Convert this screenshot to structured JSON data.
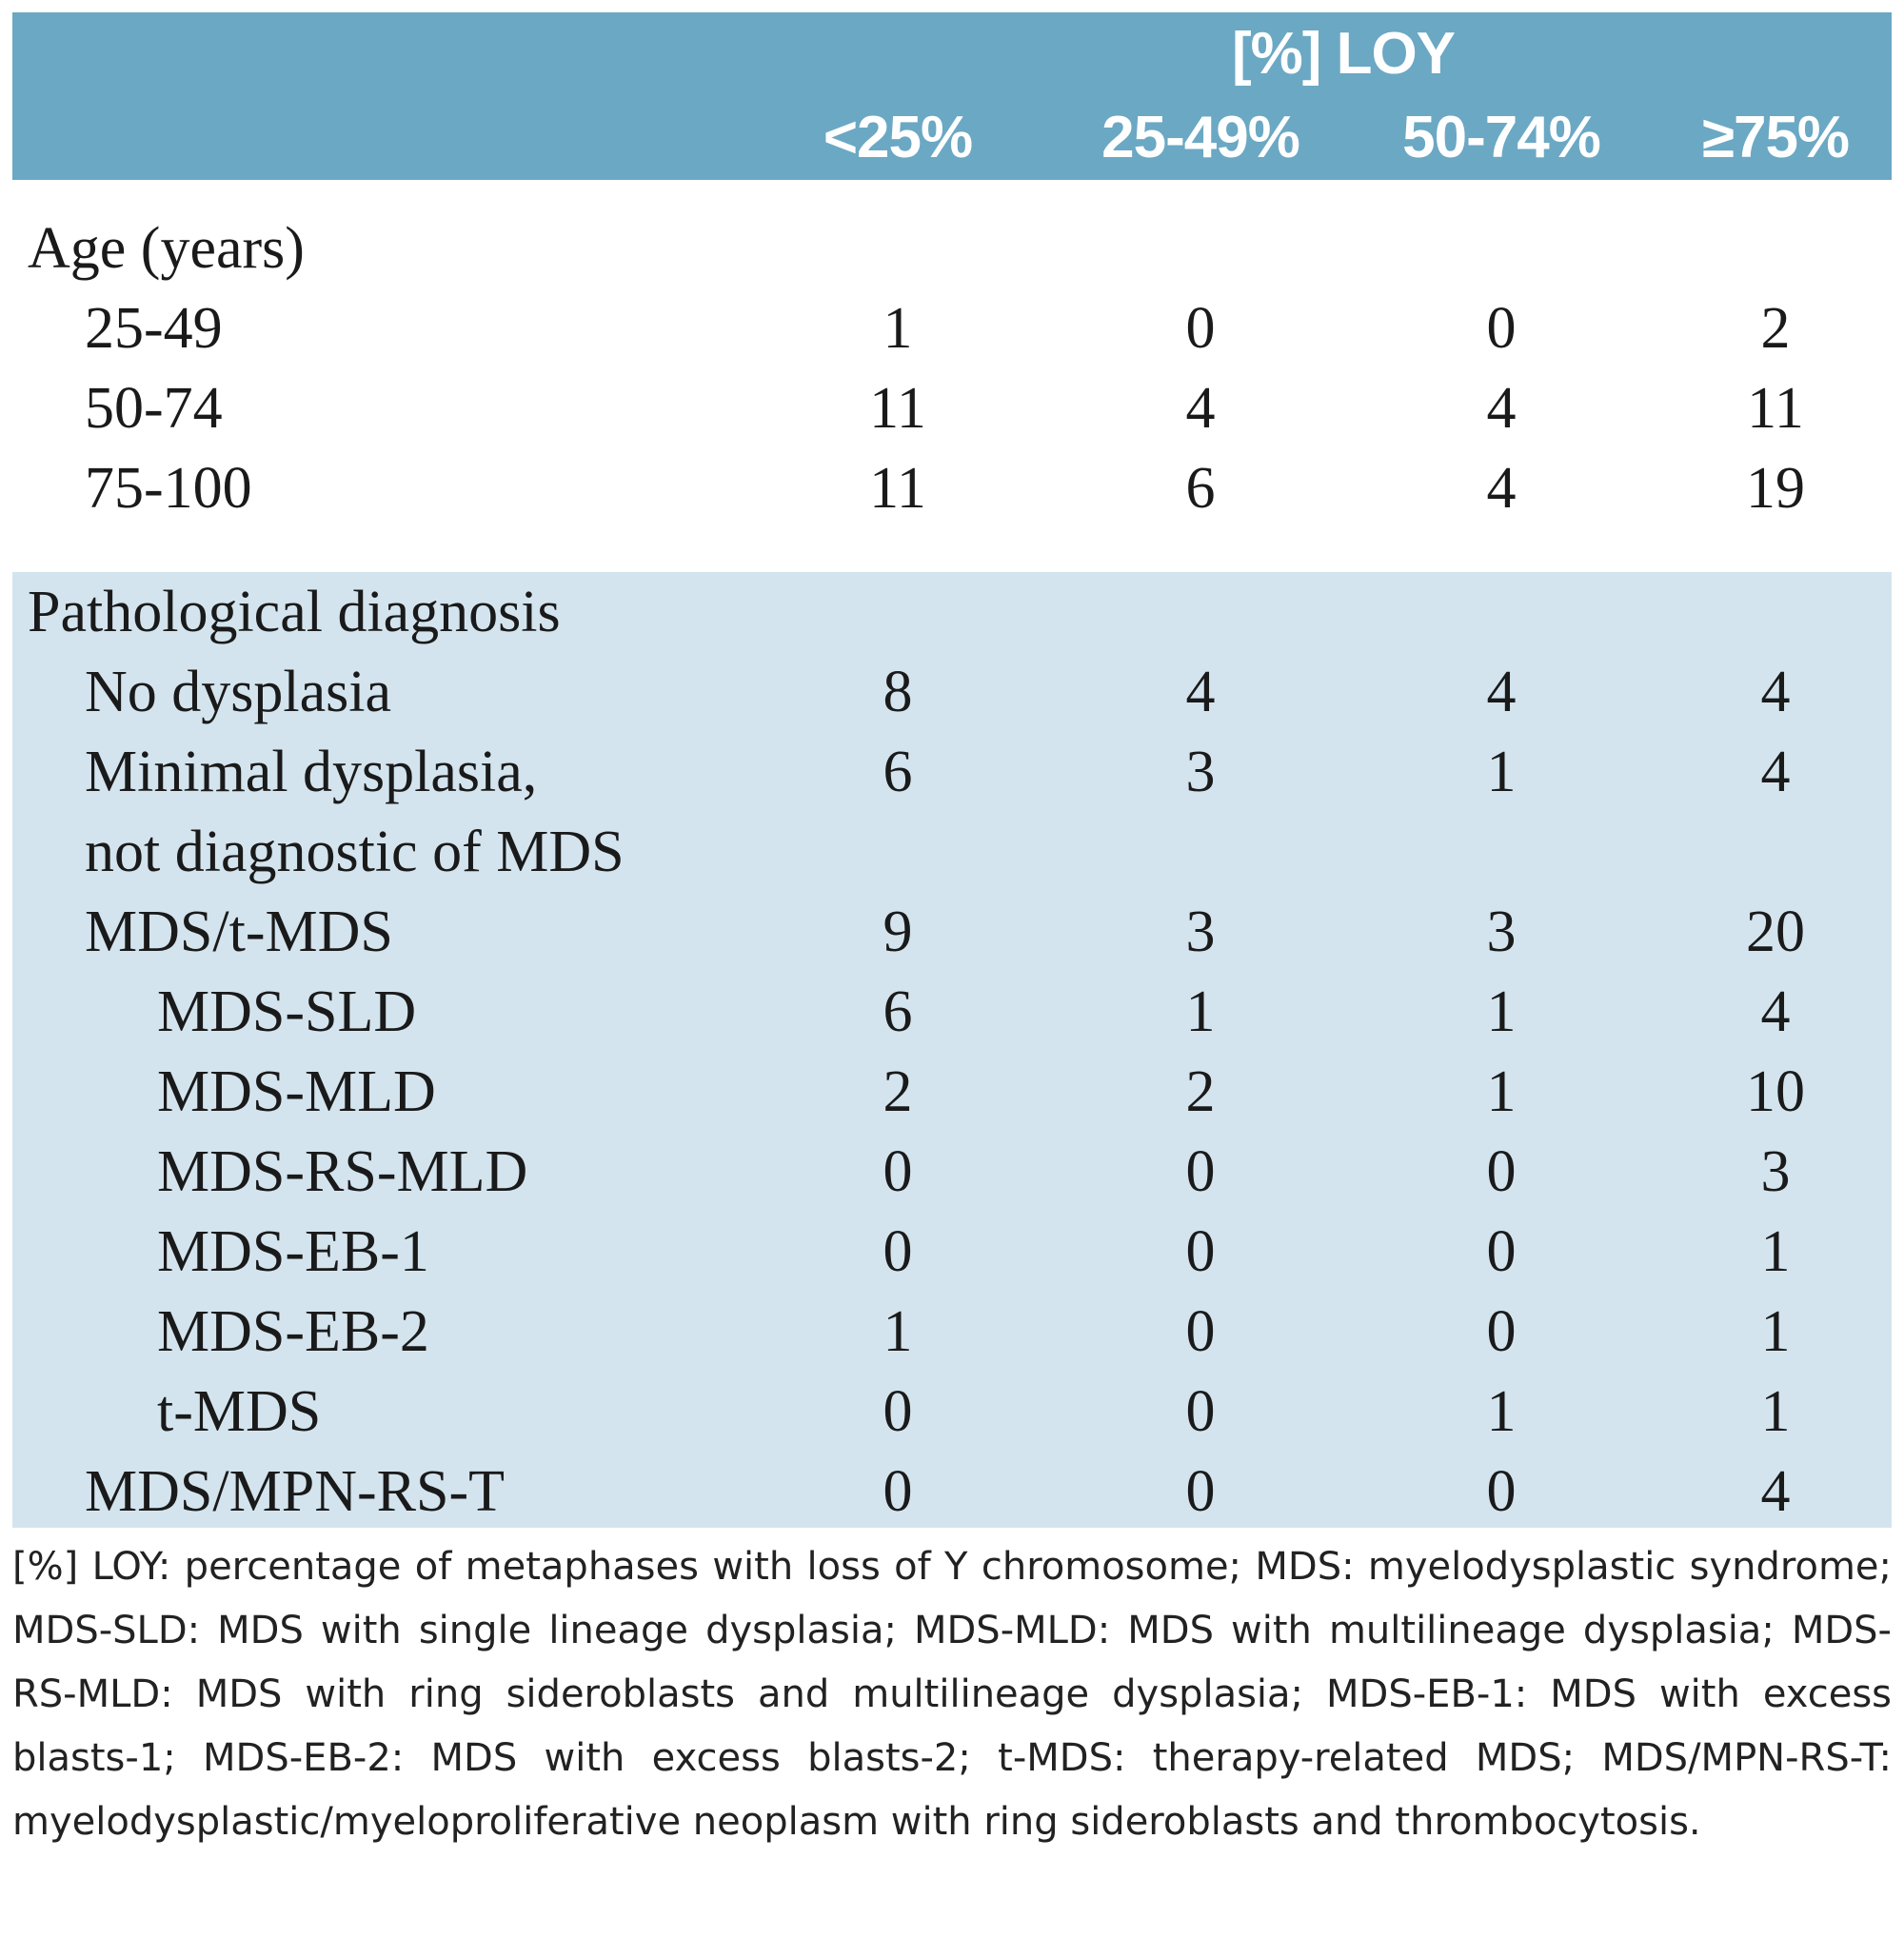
{
  "header": {
    "span_title": "[%] LOY",
    "columns": [
      "<25%",
      "25-49%",
      "50-74%",
      "≥75%"
    ]
  },
  "age_section": {
    "title": "Age (years)",
    "rows": [
      {
        "label": "25-49",
        "values": [
          "1",
          "0",
          "0",
          "2"
        ]
      },
      {
        "label": "50-74",
        "values": [
          "11",
          "4",
          "4",
          "11"
        ]
      },
      {
        "label": "75-100",
        "values": [
          "11",
          "6",
          "4",
          "19"
        ]
      }
    ]
  },
  "pathology_section": {
    "title": "Pathological diagnosis",
    "rows": [
      {
        "label": "No dysplasia",
        "values": [
          "8",
          "4",
          "4",
          "4"
        ]
      },
      {
        "label": "Minimal dysplasia,",
        "label2": "not diagnostic of MDS",
        "values": [
          "6",
          "3",
          "1",
          "4"
        ]
      },
      {
        "label": "MDS/t-MDS",
        "values": [
          "9",
          "3",
          "3",
          "20"
        ]
      },
      {
        "label": "MDS-SLD",
        "values": [
          "6",
          "1",
          "1",
          "4"
        ]
      },
      {
        "label": "MDS-MLD",
        "values": [
          "2",
          "2",
          "1",
          "10"
        ]
      },
      {
        "label": "MDS-RS-MLD",
        "values": [
          "0",
          "0",
          "0",
          "3"
        ]
      },
      {
        "label": "MDS-EB-1",
        "values": [
          "0",
          "0",
          "0",
          "1"
        ]
      },
      {
        "label": "MDS-EB-2",
        "values": [
          "1",
          "0",
          "0",
          "1"
        ]
      },
      {
        "label": "t-MDS",
        "values": [
          "0",
          "0",
          "1",
          "1"
        ]
      },
      {
        "label": "MDS/MPN-RS-T",
        "values": [
          "0",
          "0",
          "0",
          "4"
        ]
      }
    ]
  },
  "footnote": "[%] LOY: percentage of metaphases with loss of Y chromosome; MDS: myelodysplastic syndrome; MDS-SLD: MDS with single lineage dysplasia; MDS-MLD: MDS with multilineage dysplasia; MDS-RS-MLD: MDS with ring sideroblasts and multilineage dysplasia; MDS-EB-1: MDS with excess blasts-1; MDS-EB-2: MDS with excess blasts-2; t-MDS: therapy-related MDS; MDS/MPN-RS-T: myelodysplastic/myeloproliferative neoplasm with ring sideroblasts and thrombocytosis.",
  "colors": {
    "header_bg": "#6ba8c4",
    "section_bg": "#d3e4ee"
  }
}
